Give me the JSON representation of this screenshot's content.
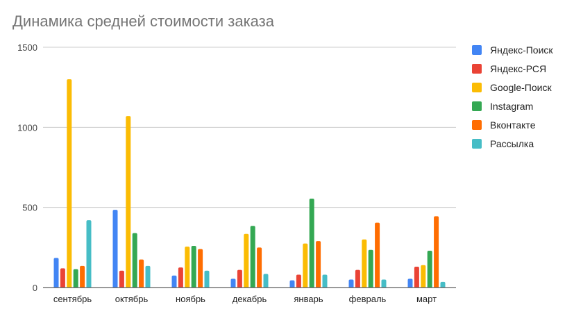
{
  "chart_data": {
    "type": "bar",
    "title": "Динамика средней стоимости заказа",
    "xlabel": "",
    "ylabel": "",
    "ylim": [
      0,
      1500
    ],
    "yticks": [
      0,
      500,
      1000,
      1500
    ],
    "grid": true,
    "legend_position": "right",
    "categories": [
      "сентябрь",
      "октябрь",
      "ноябрь",
      "декабрь",
      "январь",
      "февраль",
      "март"
    ],
    "series": [
      {
        "name": "Яндекс-Поиск",
        "color": "#4285F4",
        "values": [
          185,
          485,
          75,
          55,
          45,
          50,
          55
        ]
      },
      {
        "name": "Яндекс-РСЯ",
        "color": "#EA4335",
        "values": [
          120,
          105,
          125,
          110,
          80,
          110,
          130
        ]
      },
      {
        "name": "Google-Поиск",
        "color": "#FBBC04",
        "values": [
          1300,
          1070,
          255,
          335,
          275,
          300,
          140
        ]
      },
      {
        "name": "Instagram",
        "color": "#34A853",
        "values": [
          115,
          340,
          260,
          385,
          555,
          235,
          230
        ]
      },
      {
        "name": "Вконтакте",
        "color": "#FF6D01",
        "values": [
          135,
          175,
          240,
          250,
          290,
          405,
          445
        ]
      },
      {
        "name": "Рассылка",
        "color": "#46BDC6",
        "values": [
          420,
          135,
          105,
          85,
          80,
          50,
          35
        ]
      }
    ]
  }
}
